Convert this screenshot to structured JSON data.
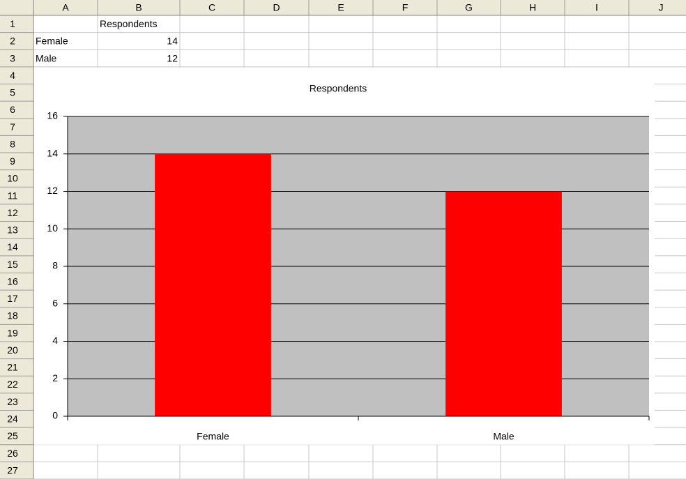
{
  "columns": [
    "A",
    "B",
    "C",
    "D",
    "E",
    "F",
    "G",
    "H",
    "I",
    "J"
  ],
  "rows": [
    1,
    2,
    3,
    4,
    5,
    6,
    7,
    8,
    9,
    10,
    11,
    12,
    13,
    14,
    15,
    16,
    17,
    18,
    19,
    20,
    21,
    22,
    23,
    24,
    25,
    26,
    27
  ],
  "table": {
    "rows": [
      [
        null,
        "Respondents"
      ],
      [
        "Female",
        14
      ],
      [
        "Male",
        12
      ]
    ]
  },
  "chart_data": {
    "type": "bar",
    "title": "Respondents",
    "categories": [
      "Female",
      "Male"
    ],
    "values": [
      14,
      12
    ],
    "color": "#ff0000",
    "plot_background": "#c0c0c0",
    "ylim": [
      0,
      16
    ],
    "yticks": [
      0,
      2,
      4,
      6,
      8,
      10,
      12,
      14,
      16
    ],
    "grid": true
  }
}
